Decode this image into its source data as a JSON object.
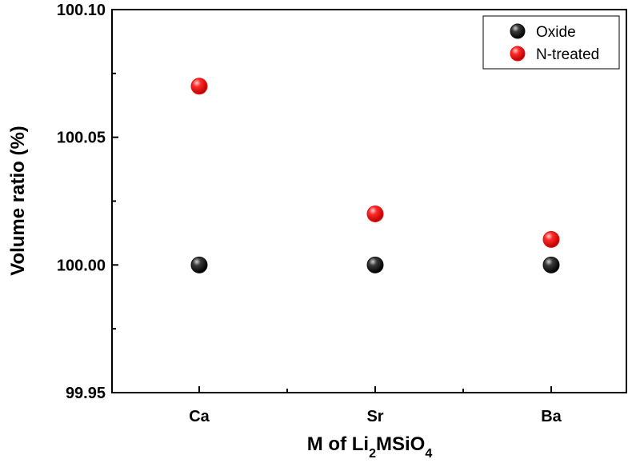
{
  "chart_data": {
    "type": "scatter",
    "categories": [
      "Ca",
      "Sr",
      "Ba"
    ],
    "xlabel": {
      "parts": [
        {
          "text": "M of Li"
        },
        {
          "text": "2",
          "sub": true
        },
        {
          "text": "MSiO"
        },
        {
          "text": "4",
          "sub": true
        }
      ]
    },
    "ylabel": "Volume ratio (%)",
    "ylim": [
      99.95,
      100.1
    ],
    "yticks": [
      "99.95",
      "100.00",
      "100.05",
      "100.10"
    ],
    "grid": false,
    "legend_position": "top-right",
    "series": [
      {
        "name": "Oxide",
        "color": "#111111",
        "values": [
          100.0,
          100.0,
          100.0
        ]
      },
      {
        "name": "N-treated",
        "color": "#ee1111",
        "values": [
          100.07,
          100.02,
          100.01
        ]
      }
    ]
  }
}
